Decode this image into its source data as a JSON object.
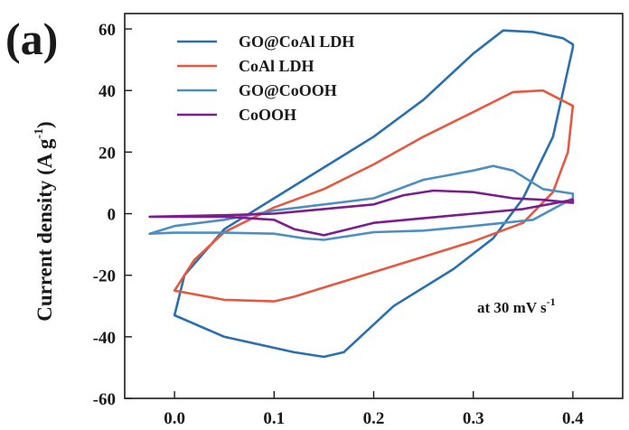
{
  "chart_data": {
    "type": "line",
    "panel_label": "(a)",
    "xlabel": "",
    "ylabel": "Current density (A g",
    "ylabel_sup": "-1",
    "ylabel_close": ")",
    "xlim": [
      -0.05,
      0.45
    ],
    "ylim": [
      -60,
      65
    ],
    "xticks": [
      "0.0",
      "0.1",
      "0.2",
      "0.3",
      "0.4"
    ],
    "xtick_values": [
      0.0,
      0.1,
      0.2,
      0.3,
      0.4
    ],
    "yticks": [
      "60",
      "40",
      "20",
      "0",
      "-20",
      "-40",
      "-60"
    ],
    "ytick_values": [
      60,
      40,
      20,
      0,
      -20,
      -40,
      -60
    ],
    "grid": false,
    "legend_position": "top-left",
    "annotation": {
      "text": "at 30 mV s",
      "sup": "-1"
    },
    "series": [
      {
        "name": "GO@CoAl LDH",
        "color": "#2a6fb0",
        "points": [
          [
            0.0,
            -33
          ],
          [
            0.01,
            -20
          ],
          [
            0.05,
            -5
          ],
          [
            0.1,
            5
          ],
          [
            0.15,
            15
          ],
          [
            0.2,
            25
          ],
          [
            0.25,
            37
          ],
          [
            0.3,
            52
          ],
          [
            0.33,
            59.5
          ],
          [
            0.36,
            59
          ],
          [
            0.39,
            57
          ],
          [
            0.4,
            55
          ],
          [
            0.4,
            54
          ],
          [
            0.38,
            25
          ],
          [
            0.35,
            5
          ],
          [
            0.32,
            -8
          ],
          [
            0.28,
            -18
          ],
          [
            0.22,
            -30
          ],
          [
            0.17,
            -45
          ],
          [
            0.15,
            -46.5
          ],
          [
            0.12,
            -45
          ],
          [
            0.05,
            -40
          ],
          [
            0.0,
            -33
          ]
        ]
      },
      {
        "name": "CoAl LDH",
        "color": "#e4593f",
        "points": [
          [
            0.0,
            -25
          ],
          [
            0.02,
            -15
          ],
          [
            0.05,
            -6
          ],
          [
            0.1,
            2
          ],
          [
            0.15,
            8
          ],
          [
            0.2,
            16
          ],
          [
            0.25,
            25
          ],
          [
            0.3,
            33
          ],
          [
            0.34,
            39.5
          ],
          [
            0.37,
            40
          ],
          [
            0.4,
            35
          ],
          [
            0.395,
            20
          ],
          [
            0.38,
            7
          ],
          [
            0.35,
            -3
          ],
          [
            0.3,
            -9
          ],
          [
            0.25,
            -14
          ],
          [
            0.2,
            -19
          ],
          [
            0.15,
            -24
          ],
          [
            0.12,
            -27
          ],
          [
            0.1,
            -28.5
          ],
          [
            0.05,
            -28
          ],
          [
            0.0,
            -25
          ]
        ]
      },
      {
        "name": "GO@CoOOH",
        "color": "#4e8fc2",
        "points": [
          [
            -0.025,
            -6.5
          ],
          [
            0.0,
            -4
          ],
          [
            0.05,
            -2
          ],
          [
            0.1,
            1
          ],
          [
            0.15,
            3
          ],
          [
            0.2,
            5
          ],
          [
            0.25,
            11
          ],
          [
            0.3,
            14
          ],
          [
            0.32,
            15.5
          ],
          [
            0.34,
            14
          ],
          [
            0.37,
            8
          ],
          [
            0.4,
            6.5
          ],
          [
            0.4,
            5
          ],
          [
            0.36,
            -2
          ],
          [
            0.3,
            -4
          ],
          [
            0.25,
            -5.5
          ],
          [
            0.2,
            -6
          ],
          [
            0.15,
            -8.5
          ],
          [
            0.13,
            -8
          ],
          [
            0.1,
            -6.5
          ],
          [
            0.05,
            -6.2
          ],
          [
            0.0,
            -6.2
          ],
          [
            -0.025,
            -6.5
          ]
        ]
      },
      {
        "name": "CoOOH",
        "color": "#7b1d8c",
        "points": [
          [
            -0.025,
            -1
          ],
          [
            0.05,
            -0.5
          ],
          [
            0.1,
            0
          ],
          [
            0.15,
            1.5
          ],
          [
            0.2,
            3
          ],
          [
            0.23,
            6
          ],
          [
            0.26,
            7.5
          ],
          [
            0.3,
            7
          ],
          [
            0.34,
            5
          ],
          [
            0.37,
            4.5
          ],
          [
            0.4,
            3.5
          ],
          [
            0.4,
            4.5
          ],
          [
            0.35,
            1.5
          ],
          [
            0.3,
            0
          ],
          [
            0.25,
            -1.5
          ],
          [
            0.2,
            -3
          ],
          [
            0.15,
            -7
          ],
          [
            0.12,
            -5
          ],
          [
            0.1,
            -2
          ],
          [
            0.05,
            -1
          ],
          [
            -0.025,
            -1
          ]
        ]
      }
    ]
  }
}
